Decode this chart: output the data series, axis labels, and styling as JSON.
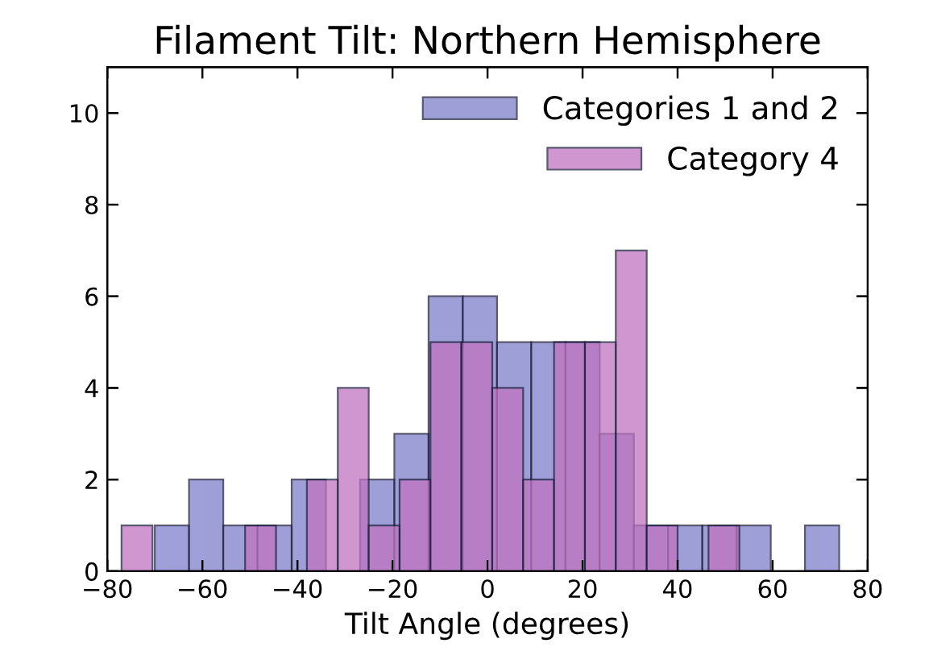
{
  "chart_data": [
    {
      "type": "histogram",
      "title": "Filament Tilt: Northern Hemisphere",
      "xlabel": "Tilt Angle (degrees)",
      "bins": [
        -70,
        -62.8,
        -55.6,
        -48.4,
        -41.2,
        -34,
        -26.8,
        -19.6,
        -12.4,
        -5.2,
        2,
        9.2,
        16.4,
        23.6,
        30.8,
        38,
        45.2,
        52.4,
        59.6,
        66.8,
        74
      ],
      "series": [
        {
          "name": "Categories 1 and 2",
          "color": "#7f7fcc",
          "values": [
            1,
            2,
            1,
            1,
            2,
            0,
            2,
            3,
            6,
            6,
            5,
            5,
            5,
            3,
            1,
            1,
            1,
            1,
            0,
            1
          ]
        }
      ],
      "xlim": [
        -80,
        80
      ],
      "xticks": [
        -80,
        -60,
        -40,
        -20,
        0,
        20,
        40,
        60,
        80
      ],
      "ylim": [
        0,
        11
      ],
      "yticks": [
        0,
        2,
        4,
        6,
        8,
        10
      ],
      "grid": false,
      "legend": "top right"
    },
    {
      "type": "histogram",
      "bins": [
        -77,
        -70.5,
        -64,
        -57.5,
        -51,
        -44.5,
        -38,
        -31.5,
        -25,
        -18.5,
        -12,
        -5.5,
        1,
        7.5,
        14,
        20.5,
        27,
        33.5,
        40,
        46.5,
        53
      ],
      "series": [
        {
          "name": "Category 4",
          "color": "#bf73bf",
          "values": [
            1,
            0,
            0,
            0,
            1,
            0,
            2,
            4,
            1,
            2,
            5,
            5,
            4,
            2,
            5,
            5,
            7,
            1,
            0,
            1
          ]
        }
      ],
      "xlim": [
        -80,
        80
      ],
      "xticks": [
        -80,
        -60,
        -40,
        -20,
        0,
        20,
        40,
        60,
        80
      ],
      "ylim": [
        0,
        11
      ],
      "yticks": [
        0,
        2,
        4,
        6,
        8,
        10
      ],
      "tick_labels": false,
      "grid": false,
      "legend": "top right"
    }
  ]
}
